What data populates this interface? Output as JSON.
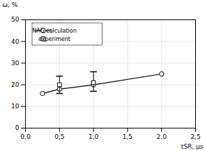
{
  "chart_data": {
    "type": "line",
    "xlabel": "tSR, μs",
    "ylabel": "ω, %",
    "xlim": [
      0,
      2.5
    ],
    "ylim": [
      0,
      50
    ],
    "xticks": [
      {
        "value": 0.0,
        "label": "0,0"
      },
      {
        "value": 0.5,
        "label": "0,5"
      },
      {
        "value": 1.0,
        "label": "1,0"
      },
      {
        "value": 1.5,
        "label": "1,5"
      },
      {
        "value": 2.0,
        "label": "2,0"
      },
      {
        "value": 2.5,
        "label": "2,5"
      }
    ],
    "yticks": [
      0,
      10,
      20,
      30,
      40,
      50
    ],
    "grid": true,
    "legend": "upper left",
    "series": [
      {
        "name": "NAG calculation",
        "type": "line",
        "color": "#000000",
        "marker": "circle",
        "line_style": "solid",
        "x": [
          0.25,
          0.5,
          1.0,
          2.0
        ],
        "values": [
          16,
          18,
          20,
          25
        ]
      },
      {
        "name": "experiment",
        "type": "scatter",
        "color": "#000000",
        "marker": "square",
        "x": [
          0.5,
          1.0
        ],
        "values": [
          20,
          21
        ],
        "error_lo": [
          4,
          4
        ],
        "error_hi": [
          4,
          5
        ]
      }
    ]
  }
}
